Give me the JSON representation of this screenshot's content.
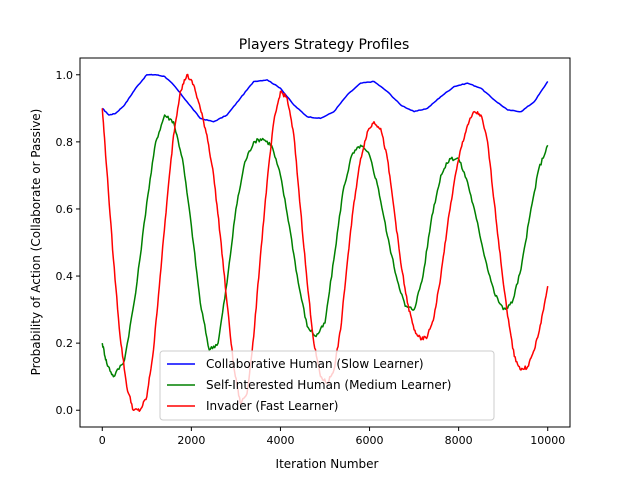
{
  "chart_data": {
    "type": "line",
    "title": "Players Strategy Profiles",
    "xlabel": "Iteration Number",
    "ylabel": "Probability of Action (Collaborate or Passive)",
    "xlim": [
      -500,
      10500
    ],
    "ylim": [
      -0.05,
      1.05
    ],
    "xticks": [
      0,
      2000,
      4000,
      6000,
      8000,
      10000
    ],
    "xtick_labels": [
      "0",
      "2000",
      "4000",
      "6000",
      "8000",
      "10000"
    ],
    "yticks": [
      0.0,
      0.2,
      0.4,
      0.6,
      0.8,
      1.0
    ],
    "ytick_labels": [
      "0.0",
      "0.2",
      "0.4",
      "0.6",
      "0.8",
      "1.0"
    ],
    "grid": false,
    "legend_position": "bottom-center",
    "series": [
      {
        "name": "Collaborative Human (Slow Learner)",
        "color": "#0000ff",
        "x": [
          0,
          150,
          300,
          500,
          750,
          1000,
          1200,
          1400,
          1600,
          1900,
          2200,
          2500,
          2800,
          3100,
          3400,
          3700,
          4000,
          4300,
          4600,
          4900,
          5200,
          5500,
          5800,
          6100,
          6400,
          6700,
          7000,
          7300,
          7600,
          7900,
          8200,
          8500,
          8800,
          9100,
          9400,
          9700,
          10000
        ],
        "y": [
          0.9,
          0.88,
          0.885,
          0.91,
          0.96,
          1.0,
          1.0,
          0.995,
          0.97,
          0.92,
          0.87,
          0.86,
          0.88,
          0.93,
          0.98,
          0.985,
          0.96,
          0.91,
          0.875,
          0.87,
          0.89,
          0.94,
          0.975,
          0.98,
          0.95,
          0.91,
          0.89,
          0.9,
          0.935,
          0.965,
          0.975,
          0.96,
          0.925,
          0.895,
          0.89,
          0.92,
          0.98
        ]
      },
      {
        "name": "Self-Interested Human (Medium Learner)",
        "color": "#008000",
        "x": [
          0,
          100,
          250,
          500,
          750,
          1000,
          1200,
          1400,
          1600,
          1800,
          2000,
          2200,
          2400,
          2600,
          2800,
          3000,
          3200,
          3400,
          3600,
          3800,
          4000,
          4200,
          4400,
          4600,
          4800,
          5000,
          5200,
          5400,
          5600,
          5800,
          6000,
          6200,
          6400,
          6600,
          6800,
          7000,
          7200,
          7400,
          7600,
          7800,
          8000,
          8200,
          8400,
          8600,
          8800,
          9000,
          9200,
          9400,
          9600,
          9800,
          10000
        ],
        "y": [
          0.2,
          0.14,
          0.1,
          0.15,
          0.35,
          0.62,
          0.8,
          0.88,
          0.86,
          0.75,
          0.55,
          0.32,
          0.18,
          0.2,
          0.38,
          0.6,
          0.74,
          0.8,
          0.81,
          0.79,
          0.7,
          0.55,
          0.38,
          0.25,
          0.22,
          0.26,
          0.45,
          0.65,
          0.76,
          0.79,
          0.76,
          0.66,
          0.52,
          0.4,
          0.31,
          0.3,
          0.4,
          0.58,
          0.7,
          0.75,
          0.75,
          0.68,
          0.57,
          0.45,
          0.35,
          0.3,
          0.32,
          0.42,
          0.58,
          0.72,
          0.79
        ]
      },
      {
        "name": "Invader (Fast Learner)",
        "color": "#ff0000",
        "x": [
          0,
          100,
          250,
          400,
          550,
          700,
          850,
          1000,
          1150,
          1300,
          1450,
          1600,
          1750,
          1900,
          2050,
          2200,
          2350,
          2500,
          2650,
          2800,
          2950,
          3100,
          3250,
          3400,
          3550,
          3700,
          3850,
          4000,
          4150,
          4300,
          4450,
          4600,
          4750,
          4900,
          5050,
          5200,
          5350,
          5500,
          5650,
          5800,
          5950,
          6100,
          6250,
          6400,
          6550,
          6700,
          6850,
          7000,
          7150,
          7300,
          7450,
          7600,
          7750,
          7900,
          8050,
          8200,
          8350,
          8500,
          8650,
          8800,
          8950,
          9100,
          9250,
          9400,
          9550,
          9700,
          9850,
          10000
        ],
        "y": [
          0.9,
          0.72,
          0.45,
          0.22,
          0.07,
          0.0,
          0.0,
          0.04,
          0.18,
          0.4,
          0.62,
          0.82,
          0.95,
          1.0,
          0.97,
          0.9,
          0.82,
          0.7,
          0.52,
          0.32,
          0.13,
          0.02,
          0.05,
          0.22,
          0.46,
          0.68,
          0.86,
          0.95,
          0.93,
          0.82,
          0.6,
          0.38,
          0.2,
          0.1,
          0.08,
          0.12,
          0.24,
          0.44,
          0.62,
          0.75,
          0.83,
          0.86,
          0.84,
          0.75,
          0.6,
          0.44,
          0.32,
          0.24,
          0.21,
          0.22,
          0.28,
          0.4,
          0.55,
          0.68,
          0.78,
          0.85,
          0.89,
          0.88,
          0.8,
          0.62,
          0.44,
          0.28,
          0.16,
          0.12,
          0.13,
          0.18,
          0.26,
          0.37
        ]
      }
    ]
  }
}
